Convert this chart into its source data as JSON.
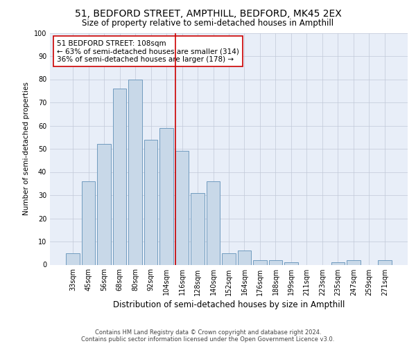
{
  "title1": "51, BEDFORD STREET, AMPTHILL, BEDFORD, MK45 2EX",
  "title2": "Size of property relative to semi-detached houses in Ampthill",
  "xlabel": "Distribution of semi-detached houses by size in Ampthill",
  "ylabel": "Number of semi-detached properties",
  "categories": [
    "33sqm",
    "45sqm",
    "56sqm",
    "68sqm",
    "80sqm",
    "92sqm",
    "104sqm",
    "116sqm",
    "128sqm",
    "140sqm",
    "152sqm",
    "164sqm",
    "176sqm",
    "188sqm",
    "199sqm",
    "211sqm",
    "223sqm",
    "235sqm",
    "247sqm",
    "259sqm",
    "271sqm"
  ],
  "values": [
    5,
    36,
    52,
    76,
    80,
    54,
    59,
    49,
    31,
    36,
    5,
    6,
    2,
    2,
    1,
    0,
    0,
    1,
    2,
    0,
    2
  ],
  "bar_color": "#c8d8e8",
  "bar_edge_color": "#6090b8",
  "ref_line_x": 6.583,
  "ref_line_color": "#cc0000",
  "annotation_line1": "51 BEDFORD STREET: 108sqm",
  "annotation_line2": "← 63% of semi-detached houses are smaller (314)",
  "annotation_line3": "36% of semi-detached houses are larger (178) →",
  "annotation_box_color": "#ffffff",
  "annotation_box_edge": "#cc0000",
  "ylim": [
    0,
    100
  ],
  "yticks": [
    0,
    10,
    20,
    30,
    40,
    50,
    60,
    70,
    80,
    90,
    100
  ],
  "grid_color": "#c0c8d8",
  "bg_color": "#e8eef8",
  "footer1": "Contains HM Land Registry data © Crown copyright and database right 2024.",
  "footer2": "Contains public sector information licensed under the Open Government Licence v3.0.",
  "title1_fontsize": 10,
  "title2_fontsize": 8.5,
  "xlabel_fontsize": 8.5,
  "ylabel_fontsize": 7.5,
  "tick_fontsize": 7,
  "annotation_fontsize": 7.5,
  "footer_fontsize": 6
}
